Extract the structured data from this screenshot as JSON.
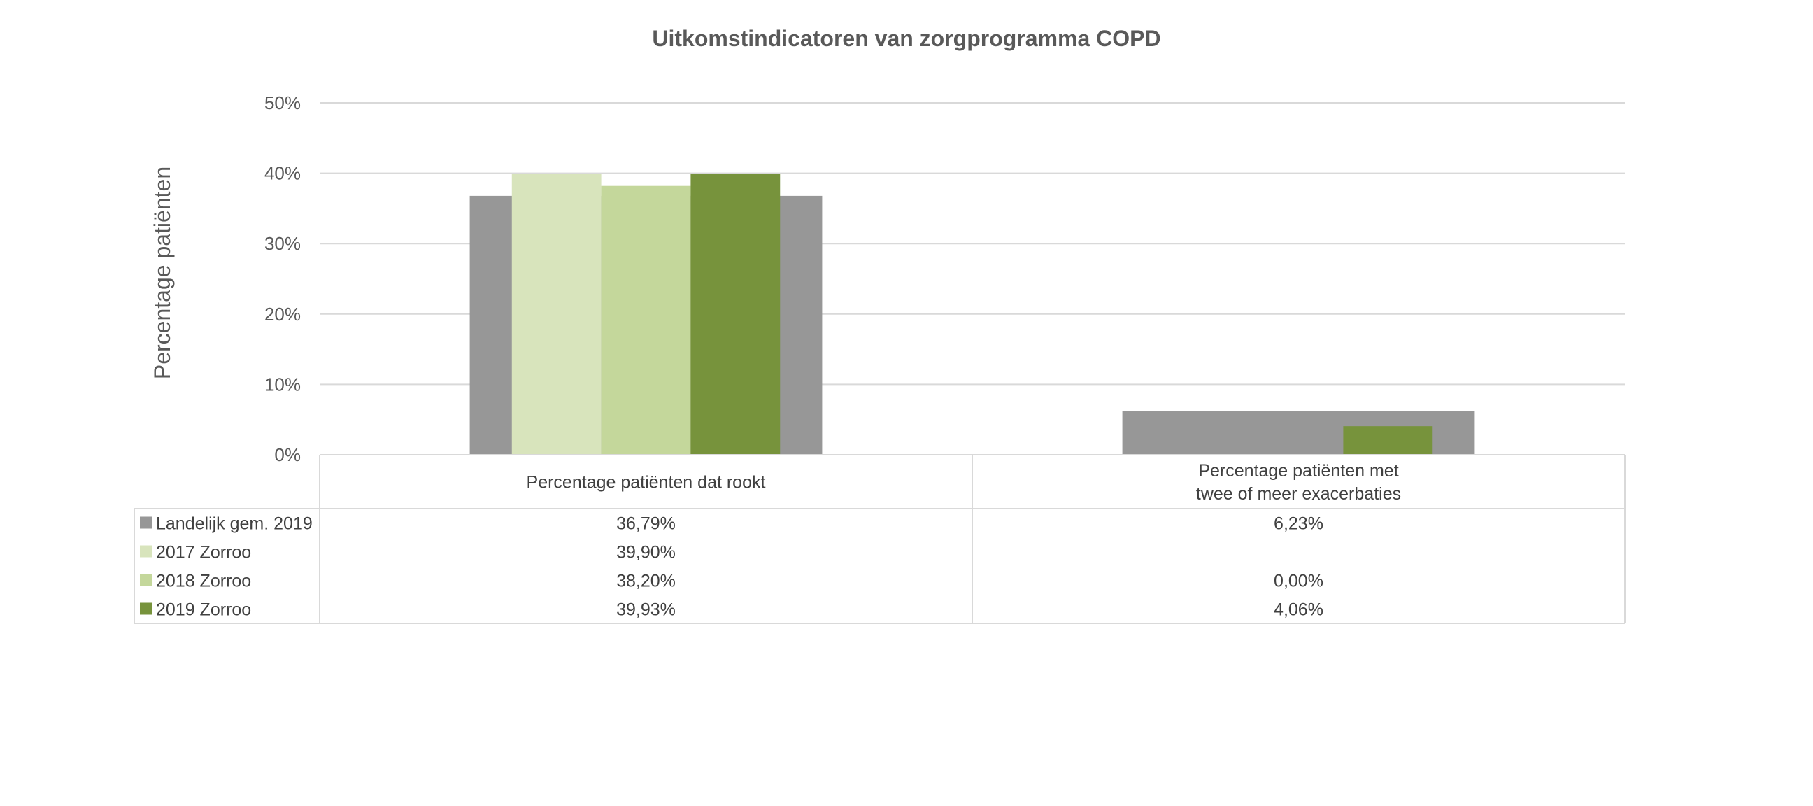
{
  "chart_data": {
    "type": "bar",
    "title": "Uitkomstindicatoren van zorgprogramma COPD",
    "ylabel": "Percentage patiënten",
    "xlabel": "",
    "ylim": [
      0,
      0.5
    ],
    "y_ticks": [
      "0%",
      "10%",
      "20%",
      "30%",
      "40%",
      "50%"
    ],
    "grid": true,
    "legend": "data-table",
    "categories": [
      [
        "Percentage patiënten dat rookt"
      ],
      [
        "Percentage patiënten met",
        "twee of meer exacerbaties"
      ]
    ],
    "series": [
      {
        "name": "Landelijk gem. 2019",
        "color": "#979797",
        "style": "background",
        "values": [
          0.3679,
          0.0623
        ],
        "labels": [
          "36,79%",
          "6,23%"
        ]
      },
      {
        "name": "2017 Zorroo",
        "color": "#d8e4bc",
        "values": [
          0.399,
          null
        ],
        "labels": [
          "39,90%",
          ""
        ]
      },
      {
        "name": "2018 Zorroo",
        "color": "#c4d79b",
        "values": [
          0.382,
          0.0
        ],
        "labels": [
          "38,20%",
          "0,00%"
        ]
      },
      {
        "name": "2019 Zorroo",
        "color": "#77933c",
        "values": [
          0.3993,
          0.0406
        ],
        "labels": [
          "39,93%",
          "4,06%"
        ]
      }
    ]
  }
}
